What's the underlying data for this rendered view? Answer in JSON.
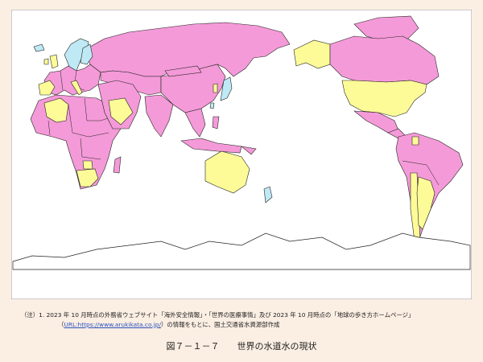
{
  "note": {
    "label": "（注）1.",
    "line1": "2023 年 10 月時点の外務省ウェブサイト「海外安全情報」・「世界の医療事情」及び 2023 年 10 月時点の「地球の歩き方ホームページ」",
    "line2": [
      "（",
      "URL:https://www.arukikata.co.jp/",
      "）の情報をもとに、国土交通省水資源部作成"
    ]
  },
  "caption": "図７－１－７　　世界の水道水の現状"
}
